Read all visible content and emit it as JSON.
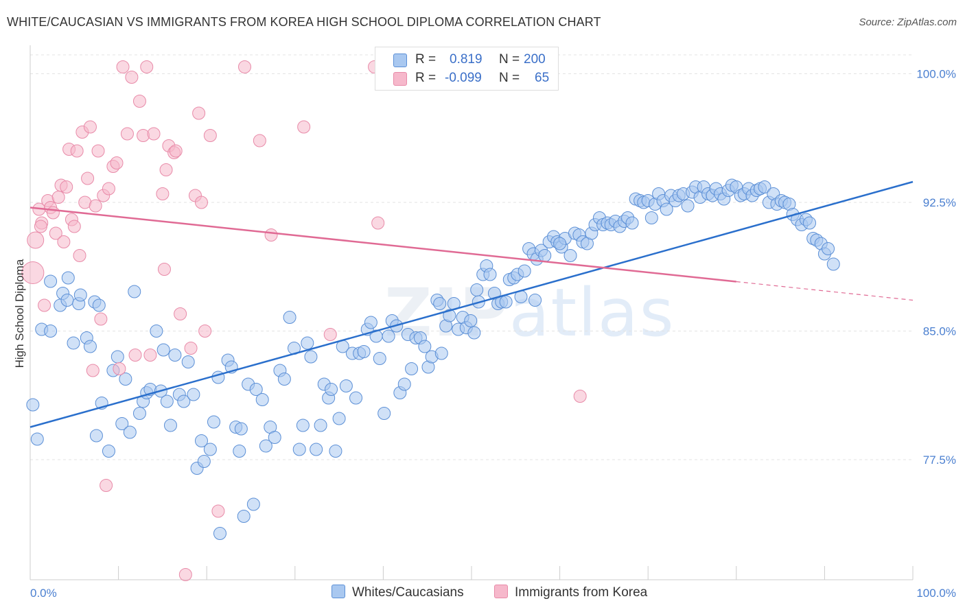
{
  "title": "WHITE/CAUCASIAN VS IMMIGRANTS FROM KOREA HIGH SCHOOL DIPLOMA CORRELATION CHART",
  "source": "Source: ZipAtlas.com",
  "watermark": {
    "zip": "ZIP",
    "atlas": "atlas"
  },
  "legend": {
    "rows": [
      {
        "r_label": "R =",
        "r_value": "0.819",
        "n_label": "N =",
        "n_value": "200"
      },
      {
        "r_label": "R =",
        "r_value": "-0.099",
        "n_label": "N =",
        "n_value": "65"
      }
    ]
  },
  "bottom_legend": {
    "series1": "Whites/Caucasians",
    "series2": "Immigrants from Korea"
  },
  "colors": {
    "blue_fill": "#a9c8f0",
    "blue_stroke": "#5b8fd6",
    "blue_line": "#2a6fcc",
    "pink_fill": "#f6b8cb",
    "pink_stroke": "#e88aa8",
    "pink_line": "#e06a94",
    "axis_label": "#4a7fd0",
    "grid": "#e3e3e3"
  },
  "chart_data": {
    "type": "scatter",
    "title": "WHITE/CAUCASIAN VS IMMIGRANTS FROM KOREA HIGH SCHOOL DIPLOMA CORRELATION CHART",
    "xlabel": "",
    "ylabel": "High School Diploma",
    "xlim": [
      0,
      100
    ],
    "ylim": [
      70.5,
      101.5
    ],
    "x_tick_labels": [
      "0.0%",
      "100.0%"
    ],
    "y_ticks": [
      77.5,
      85.0,
      92.5,
      100.0
    ],
    "y_tick_labels": [
      "77.5%",
      "85.0%",
      "92.5%",
      "100.0%"
    ],
    "grid": true,
    "legend_position": "top-center",
    "series": [
      {
        "name": "Whites/Caucasians",
        "color": "#a9c8f0",
        "trend": {
          "x": [
            0,
            100
          ],
          "y": [
            79.4,
            93.7
          ],
          "solid_until": 100
        },
        "points": [
          [
            0.3,
            80.7
          ],
          [
            0.8,
            78.7
          ],
          [
            1.3,
            85.1
          ],
          [
            2.3,
            85.0
          ],
          [
            2.3,
            87.9
          ],
          [
            3.4,
            86.5
          ],
          [
            3.7,
            87.2
          ],
          [
            4.2,
            86.8
          ],
          [
            4.3,
            88.1
          ],
          [
            4.9,
            84.3
          ],
          [
            5.5,
            86.6
          ],
          [
            5.7,
            87.1
          ],
          [
            6.4,
            84.6
          ],
          [
            6.8,
            84.1
          ],
          [
            7.3,
            86.7
          ],
          [
            7.8,
            86.5
          ],
          [
            8.1,
            80.8
          ],
          [
            8.9,
            78.0
          ],
          [
            9.4,
            82.7
          ],
          [
            9.9,
            83.5
          ],
          [
            10.4,
            79.6
          ],
          [
            10.8,
            82.2
          ],
          [
            11.3,
            79.1
          ],
          [
            11.8,
            87.3
          ],
          [
            12.4,
            80.2
          ],
          [
            12.8,
            80.9
          ],
          [
            13.2,
            81.4
          ],
          [
            13.6,
            81.6
          ],
          [
            14.3,
            85.0
          ],
          [
            14.8,
            81.5
          ],
          [
            15.1,
            83.9
          ],
          [
            15.5,
            80.9
          ],
          [
            15.9,
            79.5
          ],
          [
            16.4,
            83.6
          ],
          [
            16.9,
            81.3
          ],
          [
            17.4,
            80.9
          ],
          [
            17.9,
            83.2
          ],
          [
            18.5,
            81.3
          ],
          [
            18.9,
            77.0
          ],
          [
            19.4,
            78.6
          ],
          [
            19.7,
            77.4
          ],
          [
            20.4,
            78.1
          ],
          [
            20.8,
            79.7
          ],
          [
            21.3,
            82.3
          ],
          [
            21.5,
            73.2
          ],
          [
            22.4,
            83.3
          ],
          [
            22.8,
            82.9
          ],
          [
            23.3,
            79.4
          ],
          [
            23.7,
            78.0
          ],
          [
            24.2,
            74.2
          ],
          [
            24.7,
            81.9
          ],
          [
            25.3,
            74.9
          ],
          [
            25.6,
            81.6
          ],
          [
            26.3,
            81.0
          ],
          [
            26.7,
            78.3
          ],
          [
            27.2,
            79.4
          ],
          [
            27.7,
            78.8
          ],
          [
            28.3,
            82.7
          ],
          [
            28.8,
            82.2
          ],
          [
            29.4,
            85.8
          ],
          [
            29.9,
            84.0
          ],
          [
            30.5,
            78.1
          ],
          [
            30.9,
            79.5
          ],
          [
            31.4,
            84.3
          ],
          [
            31.8,
            83.5
          ],
          [
            32.4,
            78.1
          ],
          [
            32.9,
            79.5
          ],
          [
            33.3,
            81.9
          ],
          [
            33.8,
            81.1
          ],
          [
            34.1,
            81.6
          ],
          [
            34.6,
            78.0
          ],
          [
            35.0,
            79.9
          ],
          [
            35.4,
            84.1
          ],
          [
            35.8,
            81.8
          ],
          [
            36.5,
            83.7
          ],
          [
            36.9,
            81.1
          ],
          [
            37.3,
            83.7
          ],
          [
            37.8,
            83.8
          ],
          [
            38.2,
            85.1
          ],
          [
            38.6,
            85.5
          ],
          [
            39.2,
            84.7
          ],
          [
            39.6,
            83.4
          ],
          [
            40.1,
            80.2
          ],
          [
            40.6,
            84.7
          ],
          [
            41.0,
            85.6
          ],
          [
            41.5,
            85.3
          ],
          [
            41.9,
            81.4
          ],
          [
            42.4,
            81.9
          ],
          [
            42.8,
            84.8
          ],
          [
            43.2,
            82.8
          ],
          [
            43.7,
            84.6
          ],
          [
            44.2,
            84.6
          ],
          [
            44.7,
            84.1
          ],
          [
            45.1,
            82.9
          ],
          [
            45.5,
            83.5
          ],
          [
            46.1,
            86.8
          ],
          [
            46.6,
            83.7
          ],
          [
            47.1,
            85.3
          ],
          [
            47.5,
            85.9
          ],
          [
            48.0,
            86.6
          ],
          [
            48.5,
            85.1
          ],
          [
            49.0,
            85.8
          ],
          [
            49.4,
            85.2
          ],
          [
            49.9,
            85.6
          ],
          [
            50.3,
            84.9
          ],
          [
            50.8,
            86.7
          ],
          [
            51.3,
            88.3
          ],
          [
            51.7,
            88.8
          ],
          [
            52.1,
            88.3
          ],
          [
            52.6,
            87.2
          ],
          [
            53.0,
            86.6
          ],
          [
            53.4,
            86.7
          ],
          [
            53.9,
            86.7
          ],
          [
            54.3,
            88.0
          ],
          [
            54.8,
            88.1
          ],
          [
            55.2,
            88.3
          ],
          [
            55.6,
            87.0
          ],
          [
            56.0,
            88.5
          ],
          [
            56.5,
            89.8
          ],
          [
            57.0,
            89.5
          ],
          [
            57.4,
            89.2
          ],
          [
            57.9,
            89.7
          ],
          [
            58.3,
            89.4
          ],
          [
            58.8,
            90.2
          ],
          [
            59.3,
            90.5
          ],
          [
            59.7,
            90.2
          ],
          [
            60.2,
            89.9
          ],
          [
            60.6,
            90.4
          ],
          [
            61.2,
            89.4
          ],
          [
            61.7,
            90.7
          ],
          [
            62.2,
            90.6
          ],
          [
            62.6,
            90.2
          ],
          [
            63.1,
            90.1
          ],
          [
            63.6,
            90.7
          ],
          [
            64.0,
            91.2
          ],
          [
            64.5,
            91.6
          ],
          [
            64.9,
            91.2
          ],
          [
            65.4,
            91.3
          ],
          [
            65.8,
            91.2
          ],
          [
            66.3,
            91.4
          ],
          [
            66.8,
            91.1
          ],
          [
            67.3,
            91.4
          ],
          [
            67.7,
            91.6
          ],
          [
            68.2,
            91.3
          ],
          [
            68.6,
            92.7
          ],
          [
            69.1,
            92.6
          ],
          [
            69.5,
            92.5
          ],
          [
            70.0,
            92.6
          ],
          [
            70.4,
            91.6
          ],
          [
            70.8,
            92.4
          ],
          [
            71.2,
            93.0
          ],
          [
            71.7,
            92.6
          ],
          [
            72.1,
            92.1
          ],
          [
            72.6,
            92.9
          ],
          [
            73.1,
            92.6
          ],
          [
            73.5,
            92.9
          ],
          [
            74.0,
            93.0
          ],
          [
            74.5,
            92.3
          ],
          [
            75.0,
            93.1
          ],
          [
            75.4,
            93.4
          ],
          [
            75.9,
            92.8
          ],
          [
            76.3,
            93.4
          ],
          [
            76.8,
            93.0
          ],
          [
            77.3,
            92.9
          ],
          [
            77.7,
            93.3
          ],
          [
            78.2,
            93.0
          ],
          [
            78.6,
            92.7
          ],
          [
            79.1,
            93.2
          ],
          [
            79.5,
            93.5
          ],
          [
            80.0,
            93.4
          ],
          [
            80.5,
            92.9
          ],
          [
            80.9,
            93.0
          ],
          [
            81.4,
            93.3
          ],
          [
            81.8,
            92.9
          ],
          [
            82.3,
            93.2
          ],
          [
            82.7,
            93.3
          ],
          [
            83.2,
            93.4
          ],
          [
            83.7,
            92.5
          ],
          [
            84.2,
            93.0
          ],
          [
            84.6,
            92.4
          ],
          [
            85.1,
            92.6
          ],
          [
            85.5,
            92.5
          ],
          [
            86.0,
            92.4
          ],
          [
            86.4,
            91.8
          ],
          [
            86.9,
            91.5
          ],
          [
            87.4,
            91.2
          ],
          [
            87.9,
            91.5
          ],
          [
            88.3,
            91.3
          ],
          [
            88.7,
            90.4
          ],
          [
            89.1,
            90.3
          ],
          [
            89.6,
            90.1
          ],
          [
            90.0,
            89.5
          ],
          [
            90.4,
            89.8
          ],
          [
            91.0,
            88.9
          ],
          [
            50.6,
            87.4
          ],
          [
            60.0,
            90.1
          ],
          [
            57.2,
            86.8
          ],
          [
            46.4,
            86.6
          ],
          [
            23.9,
            79.3
          ],
          [
            7.5,
            78.9
          ]
        ]
      },
      {
        "name": "Immigrants from Korea",
        "color": "#f6b8cb",
        "trend": {
          "x": [
            0,
            100
          ],
          "y": [
            92.2,
            86.8
          ],
          "solid_until": 80
        },
        "points": [
          [
            0.3,
            88.4
          ],
          [
            0.6,
            90.3
          ],
          [
            1.0,
            92.1
          ],
          [
            1.3,
            91.3
          ],
          [
            1.6,
            86.5
          ],
          [
            2.0,
            92.6
          ],
          [
            2.3,
            92.2
          ],
          [
            2.6,
            91.9
          ],
          [
            2.9,
            90.7
          ],
          [
            3.2,
            92.8
          ],
          [
            3.5,
            93.5
          ],
          [
            3.8,
            90.2
          ],
          [
            4.1,
            93.4
          ],
          [
            4.4,
            95.6
          ],
          [
            4.7,
            91.5
          ],
          [
            5.0,
            91.1
          ],
          [
            5.3,
            95.5
          ],
          [
            5.6,
            89.4
          ],
          [
            5.9,
            96.6
          ],
          [
            6.2,
            92.5
          ],
          [
            6.5,
            93.9
          ],
          [
            6.8,
            96.9
          ],
          [
            7.1,
            82.7
          ],
          [
            7.4,
            92.3
          ],
          [
            7.7,
            95.5
          ],
          [
            8.0,
            85.7
          ],
          [
            8.3,
            92.9
          ],
          [
            8.6,
            76.0
          ],
          [
            8.9,
            93.3
          ],
          [
            9.4,
            94.6
          ],
          [
            9.8,
            94.8
          ],
          [
            10.1,
            82.8
          ],
          [
            10.5,
            100.4
          ],
          [
            11.0,
            96.5
          ],
          [
            11.5,
            99.8
          ],
          [
            11.9,
            83.6
          ],
          [
            12.4,
            98.4
          ],
          [
            12.8,
            96.4
          ],
          [
            13.2,
            100.4
          ],
          [
            13.6,
            83.6
          ],
          [
            14.0,
            96.5
          ],
          [
            15.0,
            93.0
          ],
          [
            15.2,
            88.6
          ],
          [
            15.4,
            94.4
          ],
          [
            15.7,
            95.8
          ],
          [
            16.3,
            95.4
          ],
          [
            16.5,
            95.5
          ],
          [
            17.0,
            86.0
          ],
          [
            17.6,
            70.8
          ],
          [
            18.2,
            84.0
          ],
          [
            18.7,
            92.9
          ],
          [
            19.1,
            97.7
          ],
          [
            19.4,
            92.5
          ],
          [
            19.8,
            85.0
          ],
          [
            20.4,
            96.4
          ],
          [
            21.3,
            74.5
          ],
          [
            24.3,
            100.4
          ],
          [
            26.0,
            96.1
          ],
          [
            27.3,
            90.6
          ],
          [
            31.0,
            96.9
          ],
          [
            34.0,
            84.8
          ],
          [
            39.0,
            100.4
          ],
          [
            39.4,
            91.3
          ],
          [
            62.3,
            81.2
          ],
          [
            1.2,
            91.1
          ]
        ]
      }
    ]
  }
}
